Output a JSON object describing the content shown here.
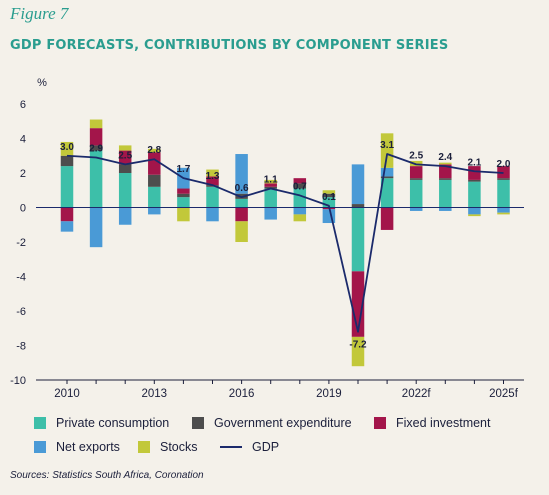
{
  "figure_label": "Figure 7",
  "title": "GDP FORECASTS, CONTRIBUTIONS BY COMPONENT SERIES",
  "source": "Sources: Statistics South Africa, Coronation",
  "chart_data": {
    "type": "bar",
    "stacked": true,
    "ylabel": "%",
    "ylim": [
      -10,
      6
    ],
    "yticks": [
      6,
      4,
      2,
      0,
      -2,
      -4,
      -6,
      -8,
      -10
    ],
    "categories": [
      "2010",
      "2011",
      "2012",
      "2013",
      "2014",
      "2015",
      "2016",
      "2017",
      "2018",
      "2019",
      "2020",
      "2021",
      "2022f",
      "2023f",
      "2024f",
      "2025f"
    ],
    "xtick_labels": [
      "2010",
      "",
      "",
      "2013",
      "",
      "",
      "2016",
      "",
      "",
      "2019",
      "",
      "",
      "2022f",
      "",
      "",
      "2025f"
    ],
    "grid": false,
    "legend_position": "bottom",
    "series": [
      {
        "name": "Private consumption",
        "color": "#3dbfa9",
        "values": [
          2.4,
          3.3,
          2.0,
          1.2,
          0.6,
          1.2,
          0.5,
          1.1,
          1.1,
          0.6,
          -3.7,
          1.7,
          1.6,
          1.6,
          1.5,
          1.6
        ]
      },
      {
        "name": "Government expenditure",
        "color": "#4d4d4d",
        "values": [
          0.6,
          0.3,
          0.5,
          0.7,
          0.2,
          0.1,
          0.3,
          0.1,
          0.3,
          0.2,
          0.2,
          0.1,
          0.1,
          0.1,
          0.1,
          0.1
        ]
      },
      {
        "name": "Fixed investment",
        "color": "#a3154a",
        "values": [
          -0.8,
          1.0,
          0.8,
          1.3,
          0.3,
          0.5,
          -0.8,
          0.2,
          0.3,
          -0.1,
          -3.8,
          -1.3,
          0.7,
          0.8,
          0.8,
          0.7
        ]
      },
      {
        "name": "Net exports",
        "color": "#4a9ad6",
        "values": [
          -0.6,
          -2.3,
          -1.0,
          -0.4,
          1.2,
          -0.8,
          2.3,
          -0.7,
          -0.4,
          -0.8,
          2.3,
          0.5,
          -0.2,
          -0.2,
          -0.4,
          -0.3
        ]
      },
      {
        "name": "Stocks",
        "color": "#c2c83a",
        "values": [
          0.8,
          0.5,
          0.3,
          0.2,
          -0.8,
          0.4,
          -1.2,
          0.2,
          -0.4,
          0.2,
          -1.7,
          2.0,
          0.3,
          0.1,
          -0.1,
          -0.1
        ]
      }
    ],
    "line_series": {
      "name": "GDP",
      "color": "#1b2a6b",
      "values": [
        3.0,
        2.9,
        2.5,
        2.8,
        1.7,
        1.3,
        0.6,
        1.1,
        0.7,
        0.1,
        -7.2,
        3.1,
        2.5,
        2.4,
        2.1,
        2.0
      ],
      "labels": [
        "3.0",
        "2.9",
        "2.5",
        "2.8",
        "1.7",
        "1.3",
        "0.6",
        "1.1",
        "0.7",
        "0.1",
        "-7.2",
        "3.1",
        "2.5",
        "2.4",
        "2.1",
        "2.0"
      ]
    }
  }
}
